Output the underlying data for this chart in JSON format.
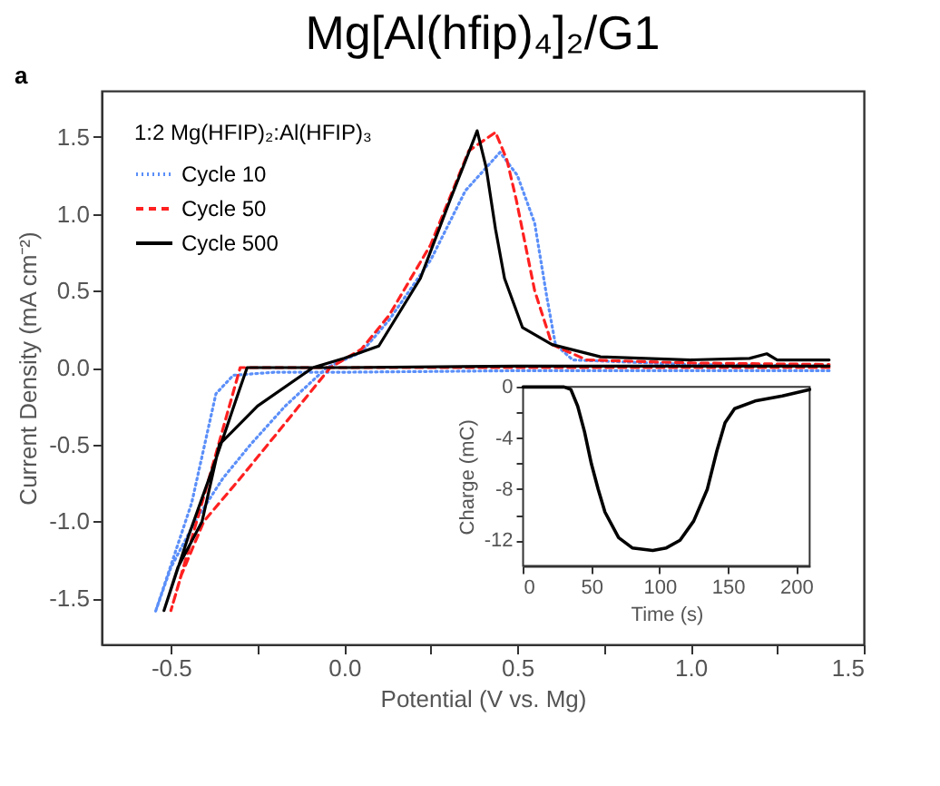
{
  "chart_data": [
    {
      "type": "line",
      "title": "Mg[Al(hfip)₄]₂/G1",
      "xlabel": "Potential (V vs. Mg)",
      "ylabel": "Current Density (mA cm⁻²)",
      "legend_title": "1:2 Mg(HFIP)₂:Al(HFIP)₃",
      "legend": "top left",
      "grid": false,
      "annotations": [
        "a"
      ],
      "xlim": [
        -0.7,
        1.5
      ],
      "ylim": [
        -1.8,
        1.8
      ],
      "xticks": [
        {
          "value": -0.5,
          "label": "-0.5"
        },
        {
          "value": -0.25,
          "label": null
        },
        {
          "value": 0,
          "label": "0.0"
        },
        {
          "value": 0.25,
          "label": null
        },
        {
          "value": 0.5,
          "label": "0.5"
        },
        {
          "value": 0.75,
          "label": null
        },
        {
          "value": 1,
          "label": "1.0"
        },
        {
          "value": 1.25,
          "label": null
        },
        {
          "value": 1.5,
          "label": "1.5"
        }
      ],
      "yticks": [
        {
          "value": -1.5,
          "label": "-1.5"
        },
        {
          "value": -1,
          "label": "-1.0"
        },
        {
          "value": -0.5,
          "label": "-0.5"
        },
        {
          "value": 0,
          "label": "0.0"
        },
        {
          "value": 0.5,
          "label": "0.5"
        },
        {
          "value": 1,
          "label": "1.0"
        },
        {
          "value": 1.5,
          "label": "1.5"
        }
      ],
      "series": [
        {
          "name": "Cycle 10",
          "color": "#5b8ff9",
          "line_style": "dotted",
          "x": [
            1.4,
            1.0,
            0.5,
            0.0,
            -0.2,
            -0.32,
            -0.37,
            -0.44,
            -0.545,
            -0.5,
            -0.43,
            -0.35,
            -0.27,
            -0.17,
            -0.05,
            0.05,
            0.13,
            0.25,
            0.35,
            0.45,
            0.5,
            0.55,
            0.585,
            0.61,
            0.66,
            1.0,
            1.4
          ],
          "values": [
            -0.02,
            -0.02,
            -0.02,
            -0.03,
            -0.03,
            -0.05,
            -0.17,
            -0.88,
            -1.59,
            -1.3,
            -1.0,
            -0.72,
            -0.5,
            -0.25,
            0.0,
            0.1,
            0.31,
            0.7,
            1.15,
            1.4,
            1.25,
            0.94,
            0.46,
            0.15,
            0.05,
            0.02,
            0.01
          ]
        },
        {
          "name": "Cycle 50",
          "color": "#ff2020",
          "line_style": "dashed",
          "x": [
            1.4,
            1.0,
            0.5,
            0.0,
            -0.2,
            -0.3,
            -0.4,
            -0.5,
            -0.47,
            -0.405,
            -0.3,
            -0.22,
            -0.13,
            -0.04,
            0.05,
            0.13,
            0.25,
            0.36,
            0.437,
            0.47,
            0.497,
            0.55,
            0.6,
            0.7,
            1.0,
            1.4
          ],
          "values": [
            0.0,
            0.0,
            0.0,
            0.0,
            0.0,
            0.0,
            -0.8,
            -1.58,
            -1.35,
            -1.0,
            -0.72,
            -0.5,
            -0.25,
            0.0,
            0.12,
            0.34,
            0.8,
            1.41,
            1.53,
            1.35,
            1.09,
            0.5,
            0.15,
            0.05,
            0.03,
            0.02
          ]
        },
        {
          "name": "Cycle 500",
          "color": "#000000",
          "line_style": "solid",
          "x": [
            1.4,
            1.0,
            0.5,
            0.0,
            -0.2,
            -0.28,
            -0.3,
            -0.38,
            -0.45,
            -0.52,
            -0.48,
            -0.41,
            -0.36,
            -0.25,
            -0.09,
            0.0,
            0.1,
            0.22,
            0.306,
            0.36,
            0.384,
            0.41,
            0.437,
            0.463,
            0.515,
            0.6,
            0.74,
            1.0,
            1.17,
            1.22,
            1.25,
            1.4
          ],
          "values": [
            0.01,
            0.01,
            0.01,
            0.0,
            0.0,
            0.0,
            -0.13,
            -0.66,
            -1.1,
            -1.58,
            -1.3,
            -1.0,
            -0.5,
            -0.25,
            0.0,
            0.06,
            0.14,
            0.58,
            1.09,
            1.4,
            1.54,
            1.3,
            0.9,
            0.58,
            0.26,
            0.15,
            0.07,
            0.05,
            0.06,
            0.09,
            0.05,
            0.05
          ]
        }
      ]
    },
    {
      "type": "line",
      "xlabel": "Time (s)",
      "ylabel": "Charge (mC)",
      "grid": false,
      "xlim": [
        0,
        210
      ],
      "ylim": [
        -14,
        0
      ],
      "xticks": [
        0,
        50,
        100,
        150,
        200
      ],
      "yticks": [
        0,
        {
          "value": -2,
          "label": null
        },
        -4,
        {
          "value": -6,
          "label": null
        },
        -8,
        {
          "value": -10,
          "label": null
        },
        -12
      ],
      "series": [
        {
          "color": "#000000",
          "line_style": "solid",
          "x": [
            0,
            30,
            35,
            40,
            45,
            50,
            55,
            60,
            70,
            80,
            95,
            105,
            115,
            125,
            135,
            142,
            148,
            155,
            170,
            190,
            210
          ],
          "values": [
            0,
            0,
            -0.2,
            -1.5,
            -3.5,
            -6,
            -8,
            -9.8,
            -11.8,
            -12.6,
            -12.8,
            -12.6,
            -12,
            -10.5,
            -8,
            -5,
            -2.8,
            -1.7,
            -1.1,
            -0.7,
            -0.2
          ]
        }
      ]
    }
  ]
}
